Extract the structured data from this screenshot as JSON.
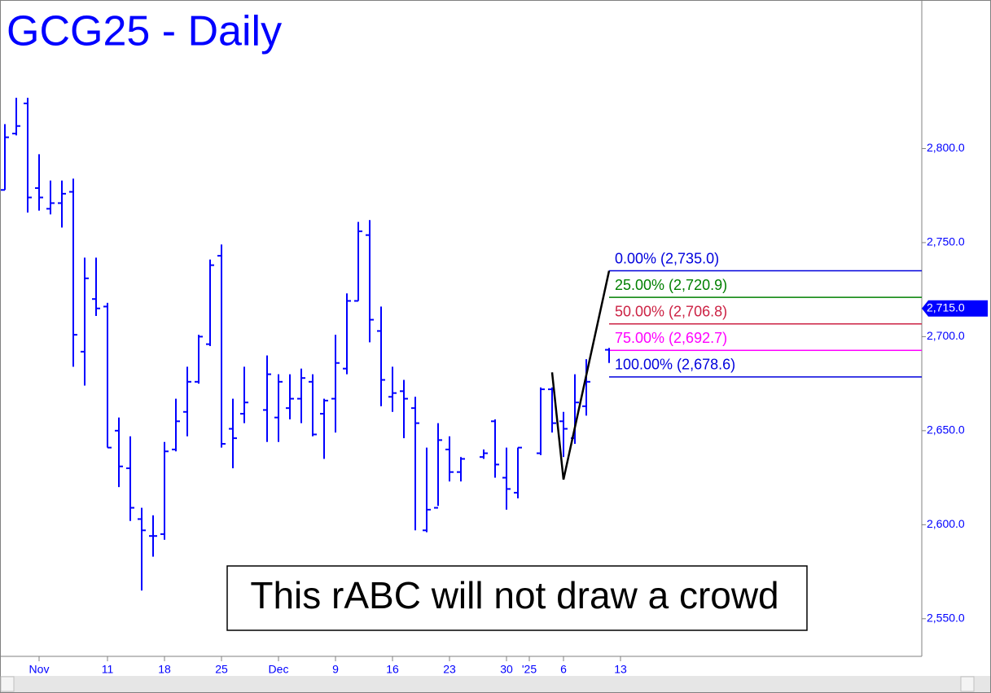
{
  "chart_data": {
    "type": "ohlc",
    "title": "GCG25 - Daily",
    "color": "#0000ff",
    "categories": [
      null,
      null,
      null,
      "Nov",
      null,
      null,
      null,
      null,
      null,
      "11",
      null,
      null,
      null,
      null,
      "18",
      null,
      null,
      null,
      null,
      "25",
      null,
      null,
      null,
      null,
      "Dec",
      null,
      null,
      null,
      null,
      "9",
      null,
      null,
      null,
      null,
      "16",
      null,
      null,
      null,
      null,
      "23",
      null,
      null,
      null,
      null,
      "30",
      null,
      "'25",
      null,
      null,
      "6",
      null,
      null,
      null,
      null,
      "13"
    ],
    "open": [
      2778,
      2808,
      2824,
      2779,
      2768,
      2771,
      2777,
      2692,
      2720,
      2716,
      2650,
      2630,
      2603,
      2594,
      2595,
      2640,
      2660,
      2676,
      2696,
      2743,
      2651,
      2659,
      null,
      2661,
      2657,
      2662,
      2667,
      2676,
      2659,
      2667,
      2683,
      2719,
      2754,
      2703,
      2668,
      2671,
      2662,
      2597,
      2609,
      2640,
      2628,
      null,
      2636,
      2655,
      2625,
      2617,
      null,
      2638,
      2672,
      2655,
      2646,
      2663,
      null,
      2693,
      null
    ],
    "high": [
      2813,
      2827,
      2827,
      2797,
      2783,
      2783,
      2784,
      2742,
      2742,
      2718,
      2657,
      2647,
      2609,
      2605,
      2644,
      2667,
      2684,
      2701,
      2741,
      2749,
      2667,
      2684,
      null,
      2690,
      2680,
      2680,
      2683,
      2680,
      2667,
      2701,
      2723,
      2761,
      2762,
      2716,
      2684,
      2677,
      2668,
      2641,
      2654,
      2647,
      2636,
      null,
      2640,
      2656,
      2641,
      2641,
      null,
      2673,
      2673,
      2660,
      2680,
      2688,
      null,
      2694,
      null
    ],
    "low": [
      2778,
      2807,
      2766,
      2767,
      2765,
      2758,
      2684,
      2674,
      2711,
      2641,
      2620,
      2602,
      2565,
      2583,
      2592,
      2639,
      2647,
      2675,
      2695,
      2641,
      2630,
      2654,
      null,
      2644,
      2644,
      2656,
      2654,
      2647,
      2635,
      2649,
      2680,
      2719,
      2697,
      2663,
      2660,
      2646,
      2597,
      2596,
      2610,
      2623,
      2623,
      null,
      2635,
      2625,
      2608,
      2614,
      null,
      2637,
      2649,
      2636,
      2643,
      2658,
      null,
      2686,
      null
    ],
    "close": [
      2806,
      2812,
      2774,
      2774,
      2771,
      2776,
      2701,
      2731,
      2715,
      2641,
      2631,
      2609,
      2597,
      2594,
      2639,
      2655,
      2676,
      2700,
      2738,
      2643,
      2646,
      2665,
      null,
      2680,
      2676,
      2667,
      2678,
      2648,
      2666,
      2686,
      2719,
      2756,
      2709,
      2677,
      2670,
      2667,
      2654,
      2608,
      2645,
      2628,
      2635,
      null,
      2638,
      2632,
      2619,
      2641,
      null,
      2672,
      2654,
      2651,
      2665,
      2676,
      null,
      null,
      null
    ],
    "ylim": [
      2530,
      2879
    ],
    "yticks": [
      {
        "value": 2550,
        "label": "2,550.0"
      },
      {
        "value": 2600,
        "label": "2,600.0"
      },
      {
        "value": 2650,
        "label": "2,650.0"
      },
      {
        "value": 2700,
        "label": "2,700.0"
      },
      {
        "value": 2750,
        "label": "2,750.0"
      },
      {
        "value": 2800,
        "label": "2,800.0"
      }
    ],
    "last_price": {
      "value": 2715,
      "label": "2,715.0"
    },
    "levels": [
      {
        "value": 2735.0,
        "label": "0.00% (2,735.0)",
        "color": "#0000dd"
      },
      {
        "value": 2720.9,
        "label": "25.00% (2,720.9)",
        "color": "#008000"
      },
      {
        "value": 2706.8,
        "label": "50.00% (2,706.8)",
        "color": "#cc2244"
      },
      {
        "value": 2692.7,
        "label": "75.00% (2,692.7)",
        "color": "#ff00ff"
      },
      {
        "value": 2678.6,
        "label": "100.00% (2,678.6)",
        "color": "#0000dd"
      }
    ],
    "pattern": {
      "x": [
        48,
        49,
        53
      ],
      "values": [
        2681,
        2624,
        2735
      ],
      "color": "#000000"
    },
    "annotation": "This rABC will not draw a crowd"
  }
}
